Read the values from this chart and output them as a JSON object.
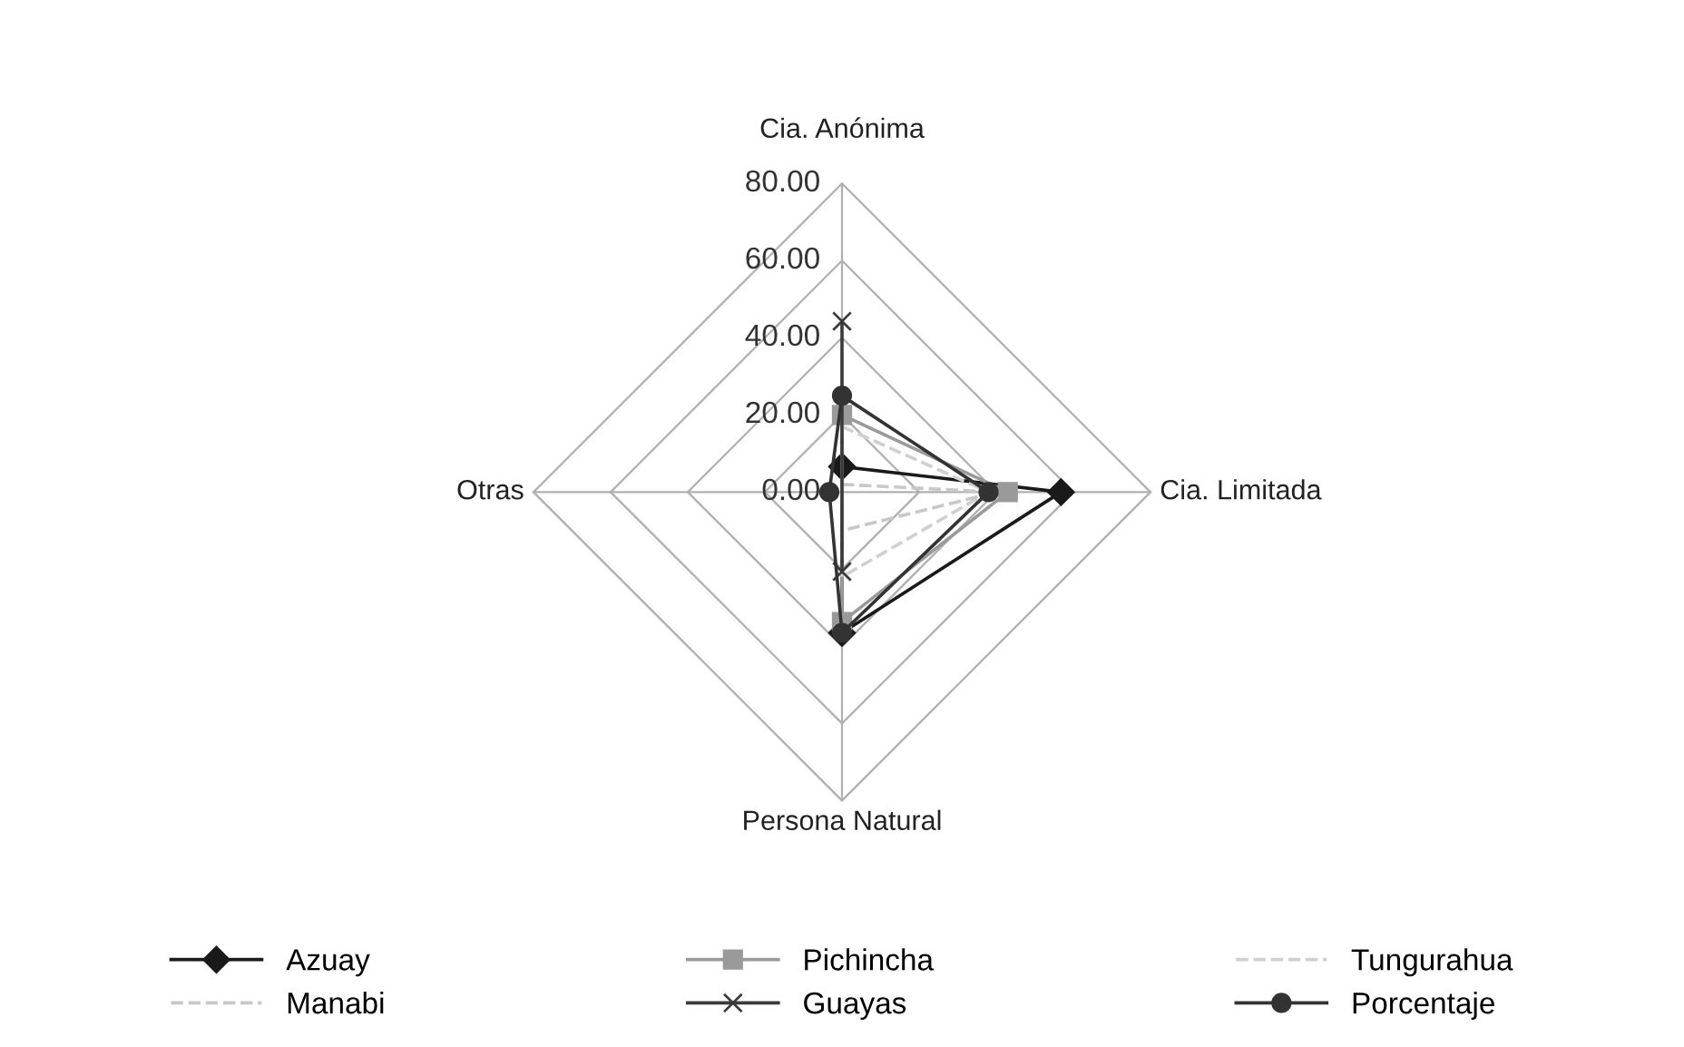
{
  "chart_data": {
    "type": "radar",
    "categories": [
      "Cia. Anónima",
      "Cia. Limitada",
      "Persona Natural",
      "Otras"
    ],
    "ylim": [
      0,
      80
    ],
    "yticks": [
      {
        "value": 0,
        "label": "0.00"
      },
      {
        "value": 20,
        "label": "20.00"
      },
      {
        "value": 40,
        "label": "40.00"
      },
      {
        "value": 60,
        "label": "60.00"
      },
      {
        "value": 80,
        "label": "80.00"
      }
    ],
    "grid": true,
    "legend": "bottom",
    "series": [
      {
        "name": "Azuay",
        "color": "#1a1a1a",
        "marker": "diamond",
        "line_style": "solid",
        "values": [
          6.6,
          56.8,
          36.5,
          null
        ]
      },
      {
        "name": "Pichincha",
        "color": "#9a9a9a",
        "marker": "square",
        "line_style": "solid",
        "values": [
          20,
          43,
          33.7,
          null
        ]
      },
      {
        "name": "Tungurahua",
        "color": "#d0d0d0",
        "marker": "none",
        "line_style": "dashed",
        "values": [
          17,
          38,
          22,
          0
        ]
      },
      {
        "name": "Manabi",
        "color": "#c8c8c8",
        "marker": "none",
        "line_style": "dashed",
        "values": [
          2,
          40,
          10,
          0
        ]
      },
      {
        "name": "Guayas",
        "color": "#3a3a3a",
        "marker": "cross",
        "line_style": "solid",
        "values": [
          44.3,
          null,
          20.6,
          null
        ]
      },
      {
        "name": "Porcentaje",
        "color": "#333333",
        "marker": "circle",
        "line_style": "solid",
        "values": [
          25,
          38,
          36.5,
          3.3
        ]
      }
    ]
  }
}
